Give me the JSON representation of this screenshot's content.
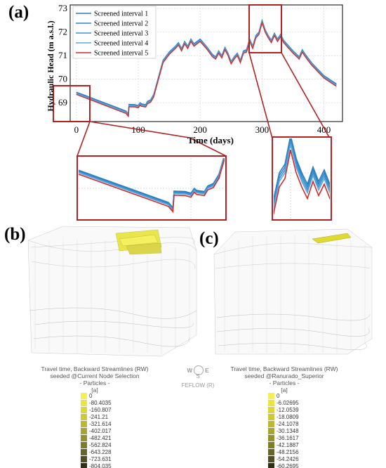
{
  "panels": {
    "a": "(a)",
    "b": "(b)",
    "c": "(c)"
  },
  "chart_data": {
    "type": "line",
    "xlabel": "Time (days)",
    "ylabel": "Hydraulic Head (m a.s.l.)",
    "xlim": [
      -10,
      430
    ],
    "ylim": [
      68.2,
      73.15
    ],
    "xticks": [
      0,
      100,
      200,
      300,
      400
    ],
    "yticks": [
      69,
      70,
      71,
      72,
      73
    ],
    "grid": true,
    "legend_position": "top-left",
    "series": [
      {
        "name": "Screened interval 1",
        "color": "#2f79b8",
        "offset": 0.1
      },
      {
        "name": "Screened interval 2",
        "color": "#2b87c8",
        "offset": 0.08
      },
      {
        "name": "Screened interval 3",
        "color": "#3f93d0",
        "offset": 0.06
      },
      {
        "name": "Screened interval 4",
        "color": "#5aa8dc",
        "offset": 0.04
      },
      {
        "name": "Screened interval 5",
        "color": "#d42a2a",
        "offset": 0.0
      }
    ],
    "base_x": [
      0,
      20,
      40,
      60,
      80,
      84,
      85,
      95,
      100,
      103,
      105,
      112,
      115,
      120,
      125,
      140,
      150,
      160,
      165,
      170,
      175,
      180,
      185,
      190,
      200,
      210,
      220,
      225,
      230,
      235,
      240,
      245,
      250,
      255,
      260,
      265,
      270,
      275,
      280,
      285,
      290,
      295,
      300,
      305,
      310,
      315,
      320,
      325,
      330,
      335,
      340,
      350,
      360,
      365,
      370,
      380,
      400,
      420
    ],
    "base_y": [
      69.35,
      69.15,
      68.95,
      68.75,
      68.55,
      68.42,
      68.83,
      68.82,
      68.78,
      68.9,
      68.85,
      68.82,
      68.96,
      69.02,
      69.25,
      70.7,
      71.05,
      71.3,
      71.45,
      71.2,
      71.5,
      71.3,
      71.6,
      71.4,
      71.6,
      71.3,
      70.95,
      70.85,
      71.1,
      70.9,
      71.25,
      71.0,
      70.65,
      70.85,
      71.0,
      70.7,
      71.1,
      71.15,
      71.6,
      71.3,
      71.75,
      71.9,
      72.4,
      72.0,
      71.75,
      71.55,
      71.85,
      71.6,
      71.8,
      71.55,
      71.4,
      71.1,
      70.85,
      71.15,
      70.95,
      70.6,
      70.05,
      69.7
    ]
  },
  "legend_b": {
    "title1": "Travel time, Backward Streamlines (RW)",
    "title2": "seeded @Current Node Selection",
    "title3": "- Particles -",
    "unit": "[a]",
    "entries": [
      "0",
      "-80.4035",
      "-160.807",
      "-241.21",
      "-321.614",
      "-402.017",
      "-482.421",
      "-562.824",
      "-643.228",
      "-723.631",
      "-804.035"
    ]
  },
  "legend_c": {
    "title1": "Travel time, Backward Streamlines (RW)",
    "title2": "seeded @Ranurado_Superior",
    "title3": "- Particles -",
    "unit": "[a]",
    "entries": [
      "0",
      "-6.02695",
      "-12.0539",
      "-18.0809",
      "-24.1078",
      "-30.1348",
      "-36.1617",
      "-42.1887",
      "-48.2156",
      "-54.2426",
      "-60.2695"
    ]
  },
  "swatch_colors": [
    "#f4f050",
    "#e8e440",
    "#dcd63a",
    "#cfc836",
    "#bdb832",
    "#a9a62f",
    "#94922c",
    "#7d7c29",
    "#666626",
    "#4e4e20",
    "#30301a"
  ],
  "compass": {
    "top": "W",
    "mid": "E",
    "bottom": "S",
    "label": "FEFLOW (R)"
  }
}
